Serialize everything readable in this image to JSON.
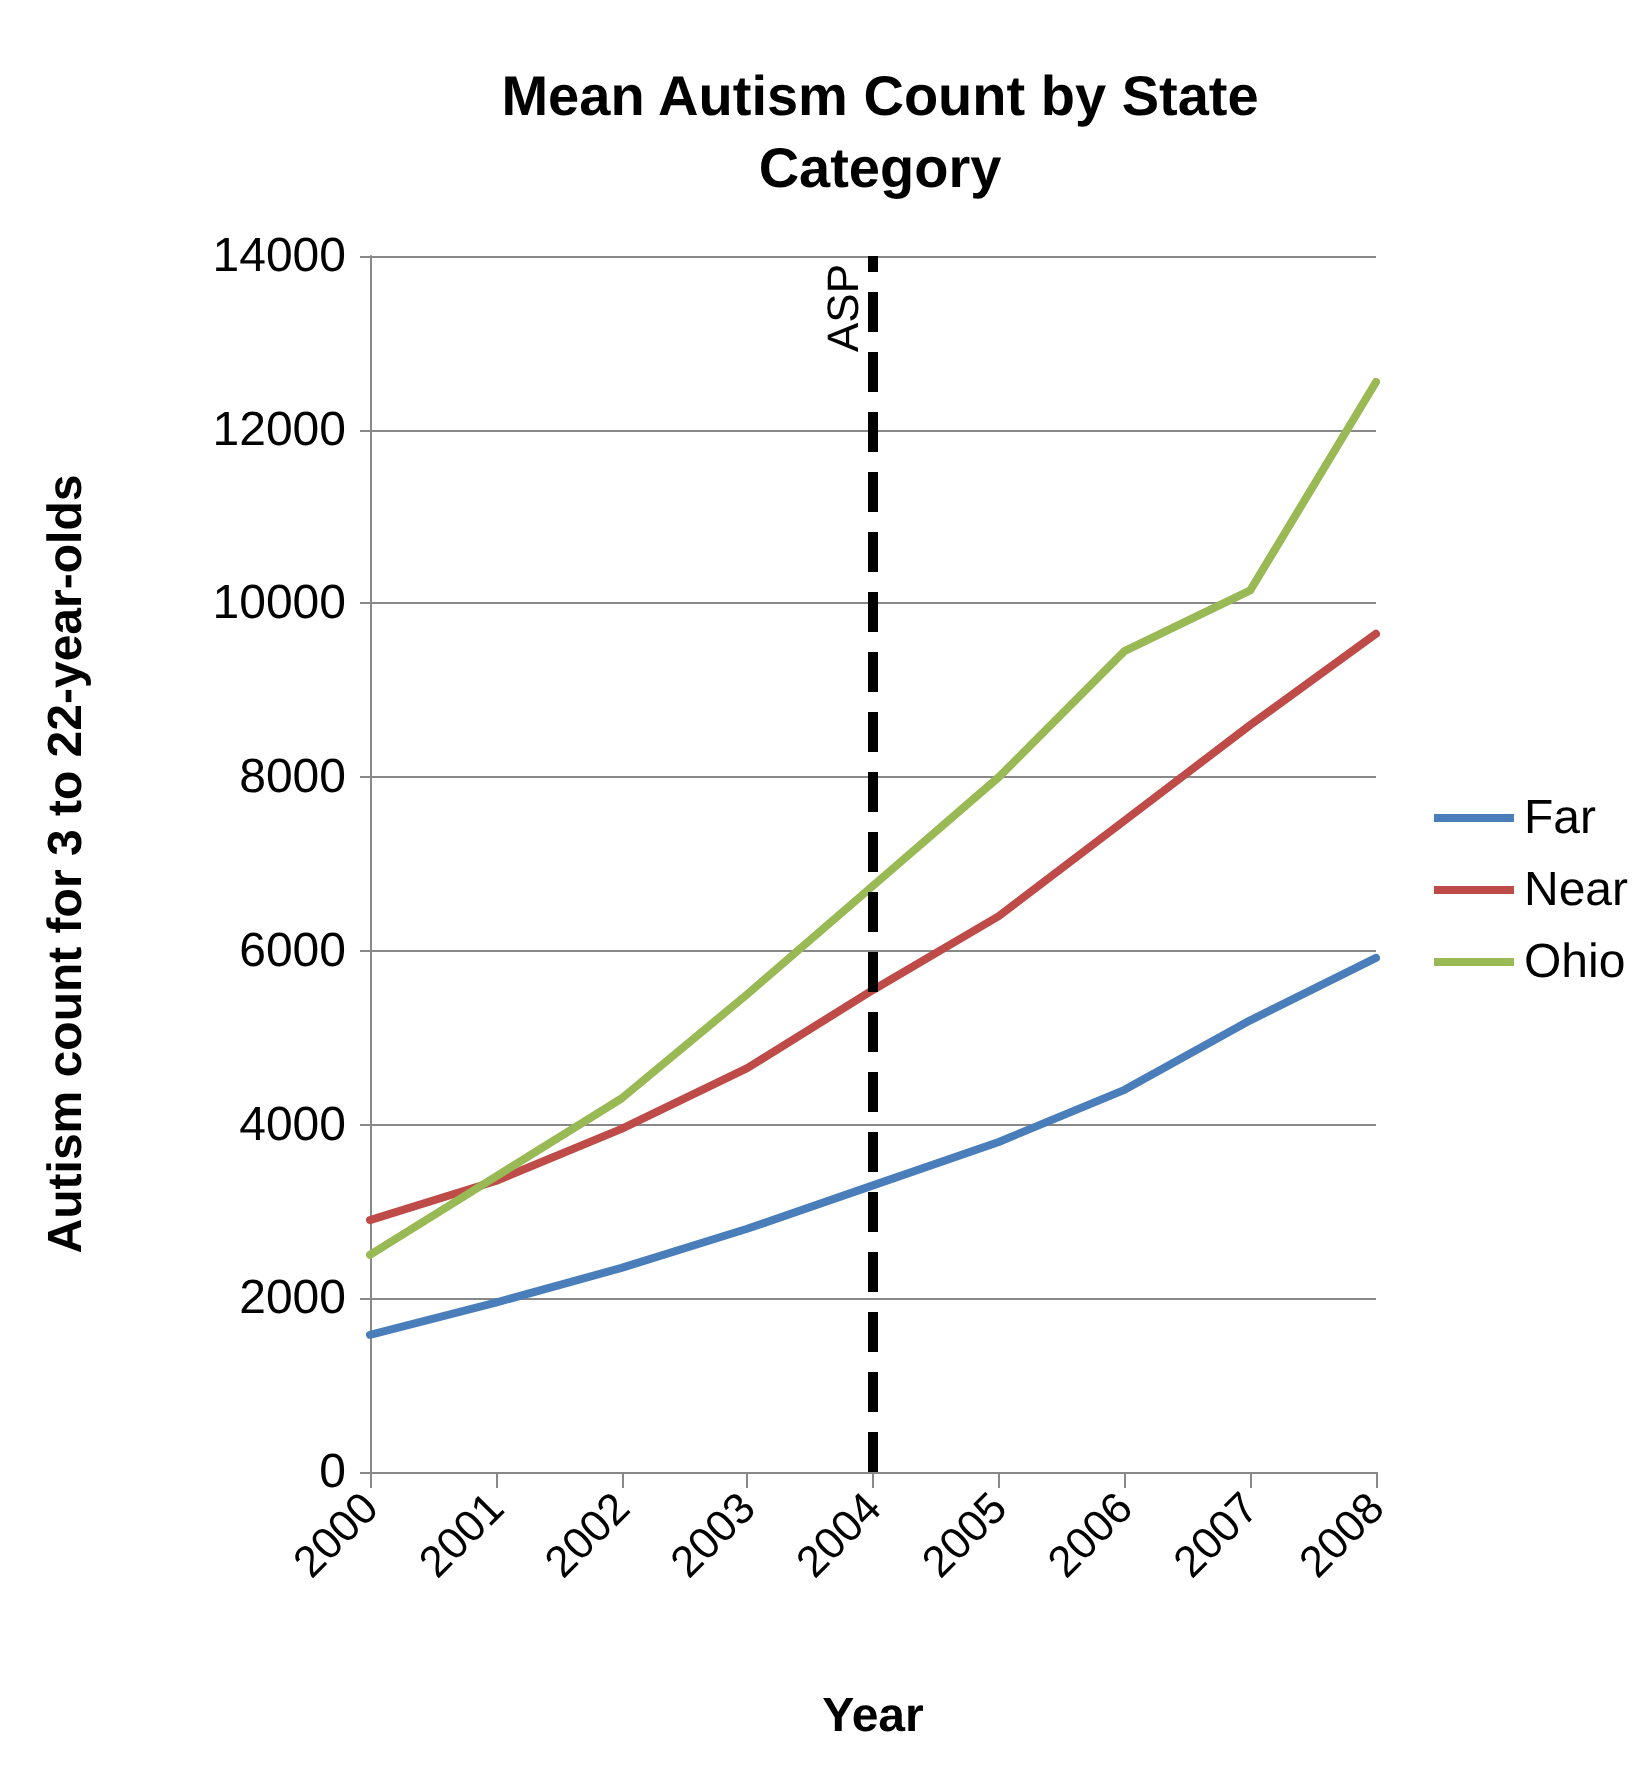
{
  "chart_data": {
    "type": "line",
    "title": "Mean Autism Count by State Category",
    "xlabel": "Year",
    "ylabel": "Autism count for 3 to 22-year-olds",
    "categories": [
      "2000",
      "2001",
      "2002",
      "2003",
      "2004",
      "2005",
      "2006",
      "2007",
      "2008"
    ],
    "series": [
      {
        "name": "Far",
        "color": "#4a7ebb",
        "values": [
          1580,
          1950,
          2350,
          2800,
          3300,
          3800,
          4400,
          5200,
          5920
        ]
      },
      {
        "name": "Near",
        "color": "#be4b48",
        "values": [
          2900,
          3350,
          3950,
          4650,
          5550,
          6400,
          7500,
          8600,
          9650
        ]
      },
      {
        "name": "Ohio",
        "color": "#98b954",
        "values": [
          2500,
          3400,
          4300,
          5500,
          6750,
          8000,
          9450,
          10150,
          12550
        ]
      }
    ],
    "ylim": [
      0,
      14000
    ],
    "yticks": [
      0,
      2000,
      4000,
      6000,
      8000,
      10000,
      12000,
      14000
    ],
    "grid": "y",
    "legend": "right",
    "marker": "none",
    "line_style": "solid",
    "ref_lines": [
      {
        "axis": "x",
        "value": "2004",
        "label": "ASP",
        "color": "#000000",
        "line_style": "dashed"
      }
    ]
  }
}
